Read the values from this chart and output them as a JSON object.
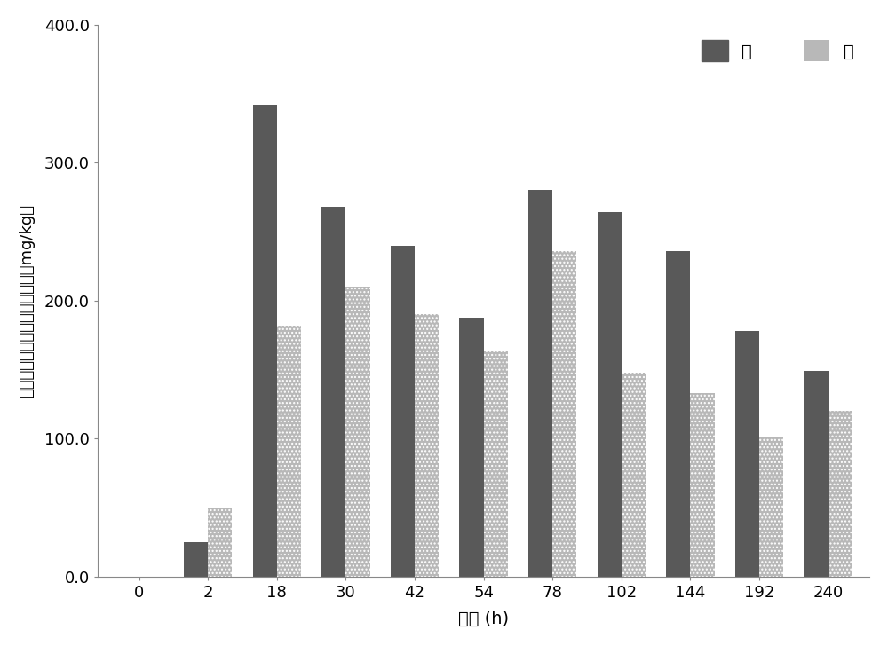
{
  "categories": [
    "0",
    "2",
    "18",
    "30",
    "42",
    "54",
    "78",
    "102",
    "144",
    "192",
    "240"
  ],
  "copper_values": [
    0,
    25,
    342,
    268,
    240,
    188,
    280,
    264,
    236,
    178,
    149
  ],
  "cadmium_values": [
    0,
    50,
    182,
    210,
    190,
    163,
    236,
    148,
    133,
    101,
    120
  ],
  "copper_color": "#595959",
  "cadmium_color": "#b8b8b8",
  "title": "",
  "xlabel": "时间 (h)",
  "ylabel": "铜和镖在周丛生物中的富集量（mg/kg）",
  "ylim": [
    0,
    400
  ],
  "yticks": [
    0.0,
    100.0,
    200.0,
    300.0,
    400.0
  ],
  "legend_copper": "铜",
  "legend_cadmium": "镖",
  "bar_width": 0.35,
  "background_color": "#ffffff"
}
